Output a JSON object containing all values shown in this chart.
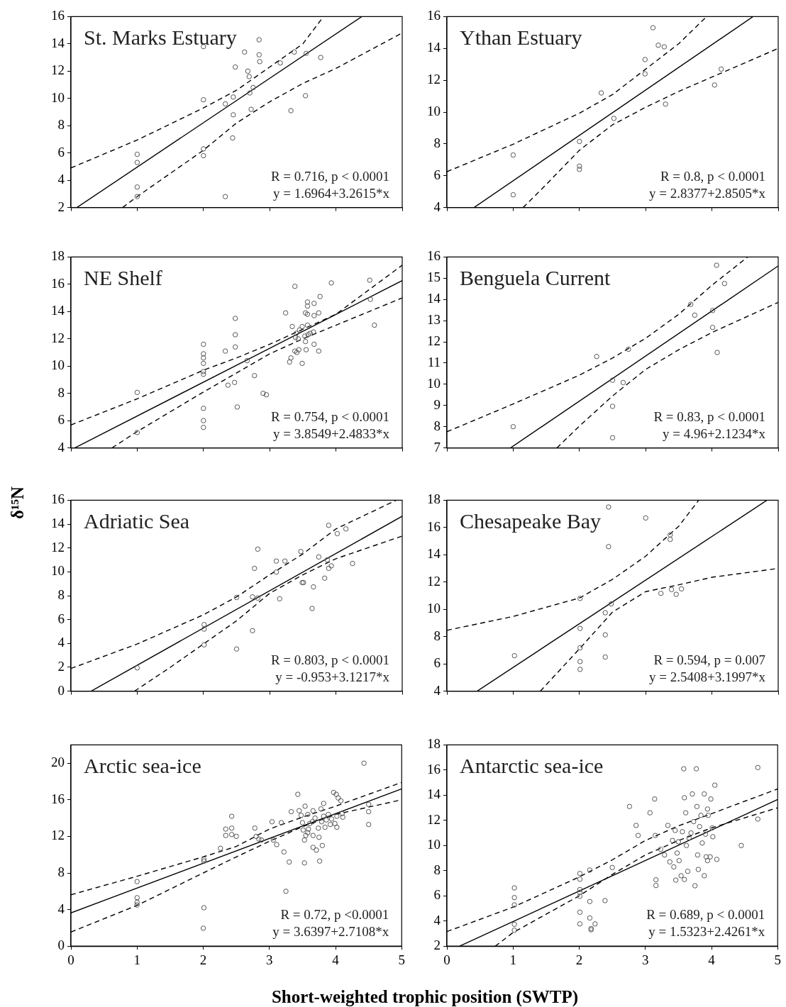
{
  "chart_data": [
    {
      "type": "scatter",
      "title": "St. Marks Estuary",
      "annotations": [
        "R = 0.716, p < 0.0001",
        "y = 1.6964+3.2615*x"
      ],
      "xlim": [
        0,
        5
      ],
      "xticks": [
        0,
        1,
        2,
        3,
        4,
        5
      ],
      "ylim": [
        2,
        16
      ],
      "yticks": [
        2,
        4,
        6,
        8,
        10,
        12,
        14,
        16
      ],
      "tick_labels": "y",
      "grid": false,
      "legend": false,
      "series": [
        {
          "type": "scatter",
          "marker": "circle",
          "color": "#555555",
          "x": [
            1.0,
            1.0,
            1.0,
            1.0,
            2.0,
            2.0,
            2.0,
            2.0,
            2.33,
            2.33,
            2.44,
            2.45,
            2.45,
            2.48,
            2.62,
            2.67,
            2.69,
            2.7,
            2.72,
            2.75,
            2.84,
            2.84,
            2.85,
            3.16,
            3.32,
            3.37,
            3.54,
            3.55,
            3.77
          ],
          "values": [
            5.9,
            5.3,
            3.5,
            2.8,
            13.8,
            9.9,
            6.3,
            5.8,
            9.6,
            2.8,
            7.1,
            8.8,
            10.1,
            12.3,
            13.4,
            12.0,
            11.6,
            10.4,
            9.2,
            10.8,
            14.3,
            13.2,
            12.7,
            12.6,
            9.1,
            13.4,
            10.2,
            13.3,
            13.0
          ]
        },
        {
          "type": "line",
          "marker": "none",
          "line_style": "solid",
          "color": "#000000",
          "x": [
            0.09,
            4.39
          ],
          "values": [
            2,
            16
          ]
        },
        {
          "type": "line",
          "marker": "none",
          "line_style": "dashed",
          "color": "#000000",
          "x": [
            0,
            1,
            2,
            2.5,
            3,
            3.5,
            3.78
          ],
          "values": [
            4.9,
            6.95,
            9.3,
            10.6,
            12.3,
            14.0,
            15.8
          ]
        },
        {
          "type": "line",
          "marker": "none",
          "line_style": "dashed",
          "color": "#000000",
          "x": [
            0.78,
            1,
            2,
            2.5,
            3,
            3.5,
            4,
            5
          ],
          "values": [
            2,
            2.8,
            6.2,
            8.2,
            9.75,
            11.1,
            12.2,
            14.8
          ]
        }
      ]
    },
    {
      "type": "scatter",
      "title": "Ythan Estuary",
      "annotations": [
        "R = 0.8, p < 0.0001",
        "y = 2.8377+2.8505*x"
      ],
      "xlim": [
        0,
        5
      ],
      "xticks": [
        0,
        1,
        2,
        3,
        4,
        5
      ],
      "ylim": [
        4,
        16
      ],
      "yticks": [
        4,
        6,
        8,
        10,
        12,
        14,
        16
      ],
      "tick_labels": "y",
      "grid": false,
      "legend": false,
      "series": [
        {
          "type": "scatter",
          "marker": "circle",
          "color": "#555555",
          "x": [
            1.0,
            1.0,
            2.0,
            2.0,
            2.0,
            2.33,
            2.52,
            2.99,
            2.99,
            3.11,
            3.19,
            3.28,
            3.3,
            4.04,
            4.14
          ],
          "values": [
            7.3,
            4.8,
            8.15,
            6.6,
            6.4,
            11.2,
            9.6,
            13.3,
            12.4,
            15.3,
            14.2,
            14.1,
            10.5,
            11.7,
            12.7
          ]
        },
        {
          "type": "line",
          "marker": "none",
          "line_style": "solid",
          "color": "#000000",
          "x": [
            0.41,
            4.62
          ],
          "values": [
            4,
            16
          ]
        },
        {
          "type": "line",
          "marker": "none",
          "line_style": "dashed",
          "color": "#000000",
          "x": [
            0,
            1,
            2,
            2.5,
            3,
            3.5,
            3.92
          ],
          "values": [
            6.25,
            7.98,
            9.93,
            11.1,
            12.7,
            14.3,
            16
          ]
        },
        {
          "type": "line",
          "marker": "none",
          "line_style": "dashed",
          "color": "#000000",
          "x": [
            1.15,
            1.5,
            2,
            2.5,
            3,
            3.5,
            4,
            5
          ],
          "values": [
            4,
            5.45,
            7.6,
            9.2,
            10.3,
            11.3,
            12.2,
            14.0
          ]
        }
      ]
    },
    {
      "type": "scatter",
      "title": "NE Shelf",
      "annotations": [
        "R = 0.754, p < 0.0001",
        "y = 3.8549+2.4833*x"
      ],
      "xlim": [
        0,
        5
      ],
      "xticks": [
        0,
        1,
        2,
        3,
        4,
        5
      ],
      "ylim": [
        4,
        18
      ],
      "yticks": [
        4,
        6,
        8,
        10,
        12,
        14,
        16,
        18
      ],
      "tick_labels": "y",
      "grid": false,
      "legend": false,
      "series": [
        {
          "type": "scatter",
          "marker": "circle",
          "color": "#555555",
          "x": [
            1.0,
            1.0,
            2.0,
            2.0,
            2.0,
            2.0,
            2.0,
            2.0,
            2.0,
            2.0,
            2.0,
            2.33,
            2.37,
            2.47,
            2.48,
            2.48,
            2.48,
            2.51,
            2.66,
            2.77,
            2.9,
            2.95,
            3.24,
            3.3,
            3.32,
            3.34,
            3.38,
            3.38,
            3.39,
            3.4,
            3.41,
            3.43,
            3.44,
            3.45,
            3.49,
            3.49,
            3.53,
            3.54,
            3.54,
            3.55,
            3.57,
            3.57,
            3.57,
            3.57,
            3.58,
            3.61,
            3.66,
            3.67,
            3.67,
            3.67,
            3.74,
            3.74,
            3.76,
            3.93,
            4.51,
            4.52,
            4.58
          ],
          "values": [
            8.07,
            5.13,
            11.6,
            10.9,
            10.6,
            10.2,
            9.6,
            9.4,
            6.9,
            6.0,
            5.5,
            11.1,
            8.6,
            8.8,
            13.5,
            12.3,
            11.4,
            7.0,
            10.4,
            9.3,
            8.0,
            7.9,
            13.9,
            10.3,
            10.6,
            12.9,
            15.85,
            11.1,
            12.1,
            12.4,
            11.0,
            12.0,
            11.2,
            12.65,
            12.9,
            10.2,
            12.2,
            13.9,
            11.8,
            11.2,
            13.8,
            14.7,
            14.4,
            13.0,
            12.3,
            12.4,
            12.5,
            11.6,
            14.6,
            13.7,
            13.9,
            11.1,
            15.1,
            16.1,
            16.3,
            14.9,
            13.0
          ]
        },
        {
          "type": "line",
          "marker": "none",
          "line_style": "solid",
          "color": "#000000",
          "x": [
            0.058,
            5
          ],
          "values": [
            4,
            16.27
          ]
        },
        {
          "type": "line",
          "marker": "none",
          "line_style": "dashed",
          "color": "#000000",
          "x": [
            0,
            1,
            2,
            2.5,
            3,
            3.5,
            4,
            5
          ],
          "values": [
            5.68,
            7.6,
            9.7,
            10.6,
            11.6,
            12.7,
            13.8,
            17.4
          ]
        },
        {
          "type": "line",
          "marker": "none",
          "line_style": "dashed",
          "color": "#000000",
          "x": [
            0.62,
            1,
            2,
            2.5,
            3,
            3.5,
            4,
            5
          ],
          "values": [
            4,
            5.2,
            8.1,
            9.5,
            10.9,
            12.0,
            13.0,
            15.0
          ]
        }
      ]
    },
    {
      "type": "scatter",
      "title": "Benguela Current",
      "annotations": [
        "R = 0.83, p < 0.0001",
        "y = 4.96+2.1234*x"
      ],
      "xlim": [
        0,
        5
      ],
      "xticks": [
        0,
        1,
        2,
        3,
        4,
        5
      ],
      "ylim": [
        7,
        16
      ],
      "yticks": [
        7,
        8,
        9,
        10,
        11,
        12,
        13,
        14,
        15,
        16
      ],
      "tick_labels": "y",
      "grid": false,
      "legend": false,
      "series": [
        {
          "type": "scatter",
          "marker": "circle",
          "color": "#555555",
          "x": [
            1.0,
            2.26,
            2.5,
            2.5,
            2.5,
            2.66,
            2.74,
            3.68,
            3.74,
            4.01,
            4.01,
            4.07,
            4.08,
            4.19
          ],
          "values": [
            8.0,
            11.31,
            10.19,
            8.96,
            7.48,
            10.08,
            11.65,
            13.77,
            13.26,
            13.48,
            12.68,
            15.61,
            11.5,
            14.75
          ]
        },
        {
          "type": "line",
          "marker": "none",
          "line_style": "solid",
          "color": "#000000",
          "x": [
            0.96,
            5
          ],
          "values": [
            7,
            15.58
          ]
        },
        {
          "type": "line",
          "marker": "none",
          "line_style": "dashed",
          "color": "#000000",
          "x": [
            0,
            1,
            2,
            2.5,
            3,
            3.5,
            4,
            4.54
          ],
          "values": [
            7.76,
            9.07,
            10.43,
            11.24,
            12.17,
            13.3,
            14.67,
            16
          ]
        },
        {
          "type": "line",
          "marker": "none",
          "line_style": "dashed",
          "color": "#000000",
          "x": [
            1.66,
            2,
            2.5,
            3,
            3.5,
            4,
            5
          ],
          "values": [
            7,
            8.03,
            9.45,
            10.7,
            11.63,
            12.44,
            13.86
          ]
        }
      ]
    },
    {
      "type": "scatter",
      "title": "Adriatic Sea",
      "ylabel": "δ¹⁵N",
      "annotations": [
        "R = 0.803, p < 0.0001",
        "y = -0.953+3.1217*x"
      ],
      "xlim": [
        0,
        5
      ],
      "xticks": [
        0,
        1,
        2,
        3,
        4,
        5
      ],
      "ylim": [
        0,
        16
      ],
      "yticks": [
        0,
        2,
        4,
        6,
        8,
        10,
        12,
        14,
        16
      ],
      "tick_labels": "y",
      "grid": false,
      "legend": false,
      "series": [
        {
          "type": "scatter",
          "marker": "circle",
          "color": "#555555",
          "x": [
            1.0,
            2.01,
            2.01,
            2.01,
            2.5,
            2.5,
            2.74,
            2.74,
            2.77,
            2.82,
            2.82,
            3.1,
            3.1,
            3.15,
            3.23,
            3.47,
            3.49,
            3.51,
            3.64,
            3.66,
            3.74,
            3.83,
            3.87,
            3.89,
            3.89,
            3.93,
            4.02,
            4.15,
            4.25
          ],
          "values": [
            1.95,
            5.58,
            5.2,
            3.88,
            7.85,
            3.53,
            7.9,
            5.07,
            10.29,
            11.9,
            7.8,
            10.9,
            9.98,
            7.74,
            10.9,
            11.7,
            9.1,
            9.1,
            6.93,
            8.74,
            11.25,
            9.47,
            11.0,
            13.9,
            10.3,
            10.5,
            13.2,
            13.6,
            10.7
          ]
        },
        {
          "type": "line",
          "marker": "none",
          "line_style": "solid",
          "color": "#000000",
          "x": [
            0.305,
            5
          ],
          "values": [
            0,
            14.66
          ]
        },
        {
          "type": "line",
          "marker": "none",
          "line_style": "dashed",
          "color": "#000000",
          "x": [
            0,
            1,
            2,
            2.5,
            3,
            3.5,
            4,
            4.91
          ],
          "values": [
            1.9,
            3.95,
            6.4,
            7.9,
            9.75,
            11.5,
            13.6,
            16
          ]
        },
        {
          "type": "line",
          "marker": "none",
          "line_style": "dashed",
          "color": "#000000",
          "x": [
            0.96,
            1.5,
            2,
            2.5,
            3,
            3.5,
            4,
            5
          ],
          "values": [
            0,
            2.0,
            3.95,
            5.9,
            8.2,
            9.75,
            11.1,
            13.0
          ]
        }
      ]
    },
    {
      "type": "scatter",
      "title": "Chesapeake Bay",
      "annotations": [
        "R = 0.594, p = 0.007",
        "y = 2.5408+3.1997*x"
      ],
      "xlim": [
        0,
        5
      ],
      "xticks": [
        0,
        1,
        2,
        3,
        4,
        5
      ],
      "ylim": [
        4,
        18
      ],
      "yticks": [
        4,
        6,
        8,
        10,
        12,
        14,
        16,
        18
      ],
      "tick_labels": "y",
      "grid": false,
      "legend": false,
      "series": [
        {
          "type": "scatter",
          "marker": "circle",
          "color": "#555555",
          "x": [
            1.02,
            2.01,
            2.01,
            2.01,
            2.01,
            2.01,
            2.39,
            2.39,
            2.39,
            2.44,
            2.44,
            2.48,
            3.0,
            3.23,
            3.37,
            3.37,
            3.39,
            3.46,
            3.54
          ],
          "values": [
            6.6,
            10.8,
            8.6,
            7.18,
            6.17,
            5.6,
            9.75,
            8.13,
            6.5,
            17.5,
            14.6,
            10.4,
            16.7,
            11.17,
            15.46,
            15.13,
            11.45,
            11.1,
            11.5
          ]
        },
        {
          "type": "line",
          "marker": "none",
          "line_style": "solid",
          "color": "#000000",
          "x": [
            0.456,
            4.83
          ],
          "values": [
            4,
            18
          ]
        },
        {
          "type": "line",
          "marker": "none",
          "line_style": "dashed",
          "color": "#000000",
          "x": [
            0,
            1,
            2,
            2.5,
            3,
            3.5,
            3.8
          ],
          "values": [
            8.46,
            9.48,
            10.83,
            12.2,
            13.9,
            16.1,
            18
          ]
        },
        {
          "type": "line",
          "marker": "none",
          "line_style": "dashed",
          "color": "#000000",
          "x": [
            1.41,
            2,
            2.5,
            3,
            3.5,
            4,
            5
          ],
          "values": [
            4,
            7.1,
            9.8,
            11.3,
            11.8,
            12.35,
            13.0
          ]
        }
      ]
    },
    {
      "type": "scatter",
      "title": "Arctic sea-ice",
      "xlabel": "Short-weighted trophic position (SWTP)",
      "annotations": [
        "R = 0.72, p <0.0001",
        "y = 3.6397+2.7108*x"
      ],
      "xlim": [
        0,
        5
      ],
      "xticks": [
        0,
        1,
        2,
        3,
        4,
        5
      ],
      "ylim": [
        0,
        22
      ],
      "yticks": [
        0,
        4,
        8,
        12,
        16,
        20
      ],
      "grid": false,
      "legend": false,
      "series": [
        {
          "type": "scatter",
          "marker": "circle",
          "color": "#555555",
          "x": [
            1.0,
            1.0,
            1.0,
            1.0,
            2.01,
            2.01,
            2.01,
            2.0,
            2.26,
            2.34,
            2.34,
            2.43,
            2.43,
            2.43,
            2.5,
            2.78,
            2.8,
            2.84,
            2.88,
            3.04,
            3.06,
            3.11,
            3.18,
            3.22,
            3.25,
            3.3,
            3.33,
            3.43,
            3.45,
            3.48,
            3.5,
            3.51,
            3.53,
            3.53,
            3.54,
            3.55,
            3.58,
            3.58,
            3.59,
            3.61,
            3.65,
            3.66,
            3.66,
            3.66,
            3.69,
            3.71,
            3.74,
            3.75,
            3.76,
            3.78,
            3.79,
            3.8,
            3.82,
            3.82,
            3.84,
            3.86,
            3.89,
            3.92,
            3.94,
            3.97,
            3.99,
            4.01,
            4.02,
            4.02,
            4.04,
            4.08,
            4.1,
            4.11,
            4.43,
            4.5,
            4.5,
            4.5
          ],
          "values": [
            7.06,
            5.3,
            4.8,
            4.5,
            9.5,
            9.3,
            4.2,
            1.96,
            10.7,
            12.8,
            12.1,
            14.2,
            12.9,
            12.2,
            12.0,
            12.9,
            12.0,
            11.7,
            11.6,
            13.6,
            11.6,
            11.1,
            13.5,
            10.3,
            6.0,
            9.2,
            14.7,
            16.6,
            14.8,
            14.3,
            13.5,
            12.7,
            9.1,
            11.6,
            15.3,
            12.1,
            14.4,
            12.4,
            12.8,
            13.4,
            13.6,
            10.8,
            14.8,
            12.1,
            14.0,
            10.5,
            12.9,
            11.9,
            9.3,
            15.0,
            13.6,
            11.0,
            14.2,
            15.6,
            13.0,
            13.8,
            14.4,
            13.3,
            13.9,
            16.8,
            13.4,
            16.6,
            14.2,
            13.0,
            16.2,
            15.9,
            14.5,
            14.1,
            20.0,
            15.5,
            14.7,
            13.3
          ]
        },
        {
          "type": "line",
          "marker": "none",
          "line_style": "solid",
          "color": "#000000",
          "x": [
            0,
            5
          ],
          "values": [
            3.64,
            17.19
          ]
        },
        {
          "type": "line",
          "marker": "none",
          "line_style": "dashed",
          "color": "#000000",
          "x": [
            0,
            1,
            2,
            2.5,
            3,
            3.5,
            4,
            5
          ],
          "values": [
            5.62,
            7.64,
            9.76,
            10.9,
            12.8,
            14.1,
            15.3,
            17.9
          ]
        },
        {
          "type": "line",
          "marker": "none",
          "line_style": "dashed",
          "color": "#000000",
          "x": [
            0,
            1,
            2,
            2.5,
            3,
            3.5,
            4,
            5
          ],
          "values": [
            1.54,
            4.46,
            8.0,
            9.76,
            11.46,
            13.05,
            14.4,
            16.0
          ]
        }
      ]
    },
    {
      "type": "scatter",
      "title": "Antarctic sea-ice",
      "annotations": [
        "R = 0.689, p < 0.0001",
        "y = 1.5323+2.4261*x"
      ],
      "xlim": [
        0,
        5
      ],
      "xticks": [
        0,
        1,
        2,
        3,
        4,
        5
      ],
      "ylim": [
        2,
        18
      ],
      "yticks": [
        2,
        4,
        6,
        8,
        10,
        12,
        14,
        16,
        18
      ],
      "grid": false,
      "legend": false,
      "series": [
        {
          "type": "scatter",
          "marker": "circle",
          "color": "#555555",
          "x": [
            1.02,
            1.02,
            1.02,
            1.02,
            1.02,
            2.01,
            2.01,
            2.01,
            2.01,
            2.01,
            2.01,
            2.01,
            2.16,
            2.16,
            2.16,
            2.18,
            2.18,
            2.24,
            2.39,
            2.5,
            2.76,
            2.86,
            2.89,
            3.07,
            3.14,
            3.15,
            3.16,
            3.16,
            3.23,
            3.29,
            3.34,
            3.37,
            3.41,
            3.43,
            3.45,
            3.46,
            3.48,
            3.5,
            3.51,
            3.54,
            3.56,
            3.58,
            3.59,
            3.59,
            3.61,
            3.62,
            3.64,
            3.66,
            3.69,
            3.71,
            3.73,
            3.75,
            3.77,
            3.78,
            3.79,
            3.8,
            3.82,
            3.84,
            3.86,
            3.89,
            3.89,
            3.91,
            3.92,
            3.94,
            3.94,
            3.95,
            3.98,
            3.99,
            4.01,
            4.02,
            4.05,
            4.08,
            4.45,
            4.7,
            4.7
          ],
          "values": [
            6.63,
            5.86,
            5.28,
            3.74,
            3.27,
            7.78,
            7.32,
            6.5,
            6.27,
            5.97,
            4.7,
            3.77,
            8.05,
            5.55,
            4.24,
            3.4,
            3.3,
            3.77,
            5.62,
            8.25,
            13.1,
            11.6,
            10.8,
            12.6,
            13.7,
            10.8,
            7.28,
            6.82,
            9.7,
            9.25,
            11.6,
            8.7,
            10.4,
            8.3,
            11.2,
            7.25,
            9.4,
            10.3,
            8.8,
            7.6,
            11.1,
            16.1,
            13.8,
            7.3,
            12.6,
            10.0,
            7.95,
            10.6,
            11.0,
            14.1,
            11.9,
            6.8,
            16.1,
            13.1,
            9.25,
            8.1,
            11.5,
            12.4,
            10.2,
            7.6,
            14.1,
            10.9,
            9.1,
            8.8,
            12.9,
            12.4,
            9.1,
            13.7,
            11.4,
            10.7,
            14.8,
            8.9,
            10.0,
            16.2,
            12.1
          ]
        },
        {
          "type": "line",
          "marker": "none",
          "line_style": "solid",
          "color": "#000000",
          "x": [
            0.193,
            5
          ],
          "values": [
            2,
            13.66
          ]
        },
        {
          "type": "line",
          "marker": "none",
          "line_style": "dashed",
          "color": "#000000",
          "x": [
            0,
            1,
            2,
            2.5,
            3,
            3.5,
            4,
            5
          ],
          "values": [
            3.16,
            5.1,
            7.5,
            8.86,
            10.4,
            11.56,
            12.53,
            14.5
          ]
        },
        {
          "type": "line",
          "marker": "none",
          "line_style": "dashed",
          "color": "#000000",
          "x": [
            0.73,
            1,
            2,
            2.5,
            3,
            3.5,
            4,
            5
          ],
          "values": [
            2,
            3.08,
            6.0,
            7.7,
            9.25,
            10.4,
            11.4,
            13.0
          ]
        }
      ]
    }
  ]
}
